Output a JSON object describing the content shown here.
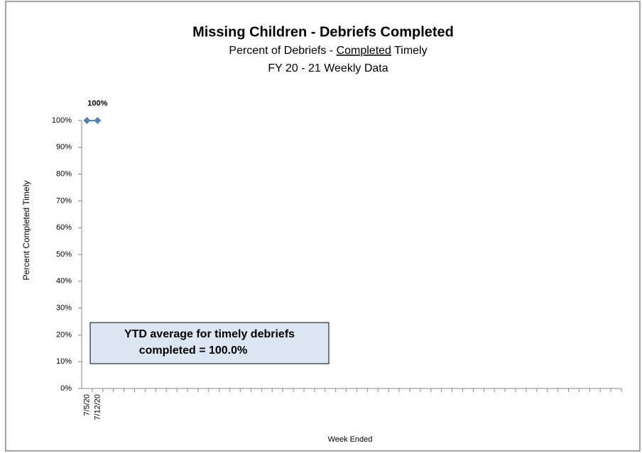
{
  "chart_data": {
    "type": "line",
    "title": "Missing Children - Debriefs Completed",
    "subtitle": [
      "Percent of Debriefs - ",
      "Completed",
      " Timely"
    ],
    "subtitle2": "FY 20 - 21  Weekly Data",
    "y_label": "Percent Completed Timely",
    "x_label": "Week Ended",
    "annotation": [
      "YTD average for timely debriefs",
      "completed = 100.0%"
    ],
    "categories": [
      "7/5/20",
      "7/12/20",
      null,
      null,
      null,
      null,
      null,
      null,
      null,
      null,
      null,
      null,
      null,
      null,
      null,
      null,
      null,
      null,
      null,
      null,
      null,
      null,
      null,
      null,
      null,
      null,
      null,
      null,
      null,
      null,
      null,
      null,
      null,
      null,
      null,
      null,
      null,
      null,
      null,
      null,
      null,
      null,
      null,
      null,
      null,
      null,
      null,
      null,
      null,
      null,
      null
    ],
    "series": [
      {
        "name": "Percent Completed Timely",
        "color": "#4f81bd",
        "values": [
          100,
          100,
          null,
          null,
          null,
          null,
          null,
          null,
          null,
          null,
          null,
          null,
          null,
          null,
          null,
          null,
          null,
          null,
          null,
          null,
          null,
          null,
          null,
          null,
          null,
          null,
          null,
          null,
          null,
          null,
          null,
          null,
          null,
          null,
          null,
          null,
          null,
          null,
          null,
          null,
          null,
          null,
          null,
          null,
          null,
          null,
          null,
          null,
          null,
          null,
          null
        ],
        "value_labels": [
          null,
          "100%",
          null,
          null,
          null,
          null,
          null,
          null,
          null,
          null,
          null,
          null,
          null,
          null,
          null,
          null,
          null,
          null,
          null,
          null,
          null,
          null,
          null,
          null,
          null,
          null,
          null,
          null,
          null,
          null,
          null,
          null,
          null,
          null,
          null,
          null,
          null,
          null,
          null,
          null,
          null,
          null,
          null,
          null,
          null,
          null,
          null,
          null,
          null,
          null,
          null
        ]
      }
    ],
    "ylim": [
      0,
      100
    ],
    "yticks": [
      {
        "value": 0,
        "label": "0%"
      },
      {
        "value": 10,
        "label": "10%"
      },
      {
        "value": 20,
        "label": "20%"
      },
      {
        "value": 30,
        "label": "30%"
      },
      {
        "value": 40,
        "label": "40%"
      },
      {
        "value": 50,
        "label": "50%"
      },
      {
        "value": 60,
        "label": "60%"
      },
      {
        "value": 70,
        "label": "70%"
      },
      {
        "value": 80,
        "label": "80%"
      },
      {
        "value": 90,
        "label": "90%"
      },
      {
        "value": 100,
        "label": "100%"
      }
    ],
    "grid": false
  }
}
